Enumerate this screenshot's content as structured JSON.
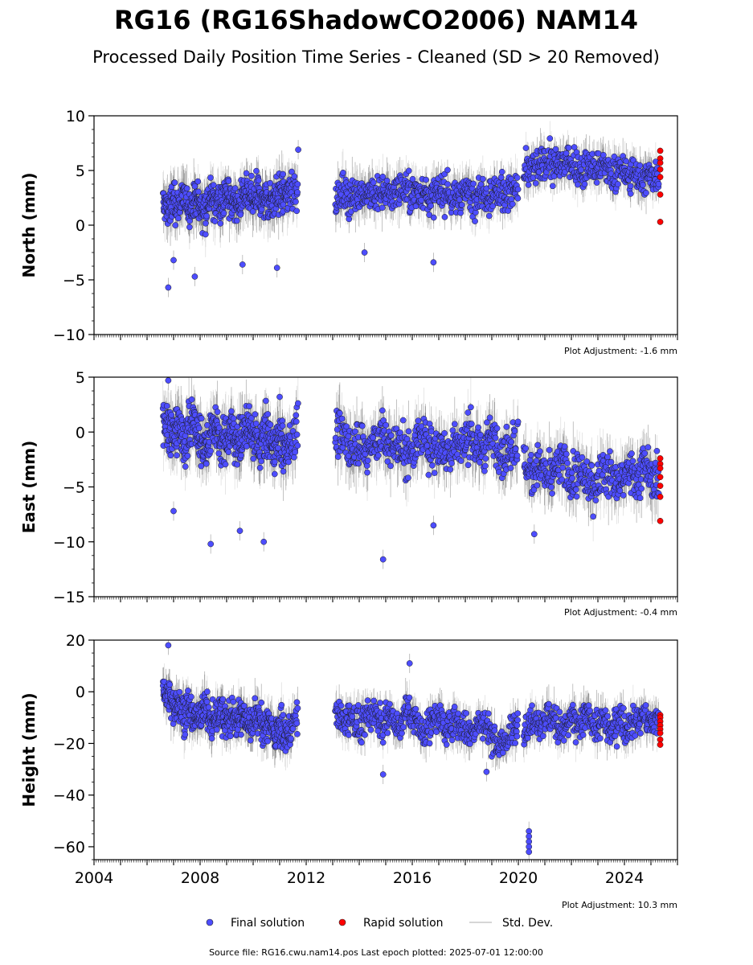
{
  "title": "RG16 (RG16ShadowCO2006) NAM14",
  "subtitle": "Processed Daily Position Time Series - Cleaned (SD > 20 Removed)",
  "source": "Source file: RG16.cwu.nam14.pos  Last epoch plotted: 2025-07-01 12:00:00",
  "legend": {
    "final": "Final solution",
    "rapid": "Rapid solution",
    "std": "Std. Dev."
  },
  "colors": {
    "final": "#4d4dff",
    "rapid": "#ff0000",
    "std": "#b0b0b0",
    "std_dark": "#404040"
  },
  "chart_data": [
    {
      "type": "scatter",
      "ylabel": "North (mm)",
      "ylim": [
        -10,
        10
      ],
      "yticks": [
        -10,
        -5,
        0,
        5,
        10
      ],
      "xlim": [
        2004,
        2026
      ],
      "adjustment": "Plot Adjustment: -1.6 mm",
      "segments": [
        {
          "x": [
            2006.6,
            2006.8,
            2007.0,
            2007.2,
            2007.4,
            2007.6,
            2007.8,
            2008.0,
            2008.2,
            2008.4,
            2008.6,
            2008.8,
            2009.0,
            2009.2,
            2009.4,
            2009.6,
            2009.8,
            2010.0,
            2010.2,
            2010.4,
            2010.6,
            2010.8,
            2011.0,
            2011.2,
            2011.4,
            2011.7
          ],
          "y": [
            2.0,
            1.5,
            2.2,
            1.8,
            2.5,
            1.6,
            2.4,
            2.0,
            1.7,
            2.6,
            2.1,
            1.9,
            2.8,
            2.2,
            1.8,
            2.4,
            2.7,
            2.1,
            2.9,
            2.3,
            2.0,
            2.6,
            3.0,
            2.4,
            3.1,
            3.3
          ],
          "spread": 1.6
        },
        {
          "x": [
            2013.1,
            2013.4,
            2013.7,
            2014.0,
            2014.3,
            2014.6,
            2014.9,
            2015.2,
            2015.5,
            2015.8,
            2016.1,
            2016.4,
            2016.7,
            2017.0,
            2017.3,
            2017.6,
            2017.9,
            2018.2,
            2018.5,
            2018.8,
            2019.1,
            2019.4,
            2019.7,
            2020.0
          ],
          "y": [
            2.6,
            3.0,
            2.4,
            3.2,
            2.8,
            2.5,
            3.1,
            2.7,
            3.3,
            2.9,
            2.6,
            3.2,
            2.5,
            3.0,
            2.8,
            2.4,
            3.1,
            2.7,
            3.0,
            2.6,
            3.2,
            2.9,
            2.7,
            3.4
          ],
          "spread": 1.5
        },
        {
          "x": [
            2020.2,
            2020.5,
            2020.8,
            2021.1,
            2021.4,
            2021.7,
            2022.0,
            2022.3,
            2022.6,
            2022.9,
            2023.2,
            2023.5,
            2023.8,
            2024.1,
            2024.4,
            2024.7,
            2025.0,
            2025.3
          ],
          "y": [
            4.6,
            5.0,
            5.4,
            5.8,
            5.2,
            6.0,
            5.6,
            4.8,
            5.3,
            4.9,
            5.4,
            4.6,
            5.0,
            4.4,
            4.8,
            4.2,
            4.6,
            4.5
          ],
          "spread": 1.4
        }
      ],
      "outliers": [
        [
          2006.8,
          -5.7
        ],
        [
          2007.8,
          -4.7
        ],
        [
          2007.0,
          -3.2
        ],
        [
          2009.6,
          -3.6
        ],
        [
          2010.9,
          -3.9
        ],
        [
          2016.8,
          -3.4
        ],
        [
          2014.2,
          -2.5
        ],
        [
          2011.7,
          6.9
        ]
      ],
      "rapid": {
        "x": 2025.35,
        "y": [
          6.8,
          6.1,
          5.7,
          5.1,
          4.4,
          2.8,
          0.3
        ]
      }
    },
    {
      "type": "scatter",
      "ylabel": "East (mm)",
      "ylim": [
        -15,
        5
      ],
      "yticks": [
        -15,
        -10,
        -5,
        0,
        5
      ],
      "xlim": [
        2004,
        2026
      ],
      "adjustment": "Plot Adjustment: -0.4 mm",
      "segments": [
        {
          "x": [
            2006.6,
            2006.8,
            2007.0,
            2007.2,
            2007.4,
            2007.6,
            2007.8,
            2008.0,
            2008.2,
            2008.4,
            2008.6,
            2008.8,
            2009.0,
            2009.2,
            2009.4,
            2009.6,
            2009.8,
            2010.0,
            2010.2,
            2010.4,
            2010.6,
            2010.8,
            2011.0,
            2011.2,
            2011.4,
            2011.7
          ],
          "y": [
            1.2,
            0.4,
            -0.6,
            0.8,
            -1.0,
            0.2,
            1.0,
            -0.8,
            -1.6,
            -0.2,
            0.6,
            -1.2,
            -0.4,
            0.4,
            -1.0,
            -0.6,
            0.8,
            -0.2,
            -1.4,
            0.2,
            -0.8,
            -1.6,
            -0.4,
            -2.0,
            -1.2,
            0.2
          ],
          "spread": 1.9
        },
        {
          "x": [
            2013.1,
            2013.4,
            2013.7,
            2014.0,
            2014.3,
            2014.6,
            2014.9,
            2015.2,
            2015.5,
            2015.8,
            2016.1,
            2016.4,
            2016.7,
            2017.0,
            2017.3,
            2017.6,
            2017.9,
            2018.2,
            2018.5,
            2018.8,
            2019.1,
            2019.4,
            2019.7,
            2020.0
          ],
          "y": [
            0.2,
            -0.6,
            -1.4,
            -0.4,
            -2.0,
            -1.0,
            -0.2,
            -1.6,
            -0.8,
            -2.2,
            -1.2,
            -0.4,
            -1.8,
            -1.0,
            -2.4,
            -0.6,
            -1.4,
            -0.2,
            -1.8,
            -1.0,
            -0.4,
            -2.0,
            -1.2,
            -0.8
          ],
          "spread": 1.9
        },
        {
          "x": [
            2020.2,
            2020.5,
            2020.8,
            2021.1,
            2021.4,
            2021.7,
            2022.0,
            2022.3,
            2022.6,
            2022.9,
            2023.2,
            2023.5,
            2023.8,
            2024.1,
            2024.4,
            2024.7,
            2025.0,
            2025.3
          ],
          "y": [
            -2.6,
            -4.0,
            -3.0,
            -4.6,
            -3.4,
            -2.8,
            -4.8,
            -3.6,
            -4.4,
            -5.2,
            -3.2,
            -4.2,
            -5.0,
            -3.6,
            -4.4,
            -3.0,
            -4.0,
            -4.6
          ],
          "spread": 1.8
        }
      ],
      "outliers": [
        [
          2008.4,
          -10.2
        ],
        [
          2010.4,
          -10.0
        ],
        [
          2014.9,
          -11.6
        ],
        [
          2007.0,
          -7.2
        ],
        [
          2009.5,
          -9.0
        ],
        [
          2016.8,
          -8.5
        ],
        [
          2020.6,
          -9.3
        ],
        [
          2011.0,
          3.2
        ],
        [
          2006.8,
          4.7
        ]
      ],
      "rapid": {
        "x": 2025.35,
        "y": [
          -2.4,
          -2.9,
          -3.3,
          -4.1,
          -4.9,
          -5.9,
          -8.1
        ]
      }
    },
    {
      "type": "scatter",
      "ylabel": "Height (mm)",
      "ylim": [
        -65,
        20
      ],
      "yticks": [
        -60,
        -40,
        -20,
        0,
        20
      ],
      "xlim": [
        2004,
        2026
      ],
      "xticks": [
        2004,
        2008,
        2012,
        2016,
        2020,
        2024
      ],
      "adjustment": "Plot Adjustment: 10.3 mm",
      "segments": [
        {
          "x": [
            2006.6,
            2006.8,
            2007.0,
            2007.2,
            2007.4,
            2007.6,
            2007.8,
            2008.0,
            2008.2,
            2008.4,
            2008.6,
            2008.8,
            2009.0,
            2009.2,
            2009.4,
            2009.6,
            2009.8,
            2010.0,
            2010.2,
            2010.4,
            2010.6,
            2010.8,
            2011.0,
            2011.2,
            2011.4,
            2011.7
          ],
          "y": [
            2.0,
            -2.0,
            -6.0,
            -4.0,
            -9.0,
            -6.0,
            -11.0,
            -8.0,
            -6.0,
            -12.0,
            -10.0,
            -7.0,
            -13.0,
            -9.0,
            -12.0,
            -8.0,
            -14.0,
            -11.0,
            -9.0,
            -15.0,
            -12.0,
            -17.0,
            -13.0,
            -18.0,
            -15.0,
            -10.0
          ],
          "spread": 6.0
        },
        {
          "x": [
            2013.1,
            2013.4,
            2013.7,
            2014.0,
            2014.3,
            2014.6,
            2014.9,
            2015.2,
            2015.5,
            2015.8,
            2016.1,
            2016.4,
            2016.7,
            2017.0,
            2017.3,
            2017.6,
            2017.9,
            2018.2,
            2018.5,
            2018.8,
            2019.1,
            2019.4,
            2019.7,
            2020.0
          ],
          "y": [
            -8.0,
            -12.0,
            -9.0,
            -14.0,
            -10.0,
            -7.0,
            -13.0,
            -9.0,
            -15.0,
            -6.0,
            -11.0,
            -16.0,
            -12.0,
            -9.0,
            -15.0,
            -11.0,
            -13.0,
            -17.0,
            -12.0,
            -14.0,
            -18.0,
            -22.0,
            -16.0,
            -13.0
          ],
          "spread": 5.5
        },
        {
          "x": [
            2020.2,
            2020.5,
            2020.8,
            2021.1,
            2021.4,
            2021.7,
            2022.0,
            2022.3,
            2022.6,
            2022.9,
            2023.2,
            2023.5,
            2023.8,
            2024.1,
            2024.4,
            2024.7,
            2025.0,
            2025.3
          ],
          "y": [
            -14.0,
            -10.0,
            -13.0,
            -9.0,
            -12.0,
            -15.0,
            -10.0,
            -13.0,
            -9.0,
            -14.0,
            -11.0,
            -16.0,
            -10.0,
            -14.0,
            -12.0,
            -9.0,
            -13.0,
            -12.0
          ],
          "spread": 5.5
        }
      ],
      "outliers": [
        [
          2020.4,
          -54.0
        ],
        [
          2020.4,
          -56.0
        ],
        [
          2020.4,
          -58.0
        ],
        [
          2020.4,
          -60.0
        ],
        [
          2020.4,
          -62.0
        ],
        [
          2014.9,
          -32.0
        ],
        [
          2018.8,
          -31.0
        ],
        [
          2006.8,
          18.0
        ],
        [
          2015.9,
          11.0
        ]
      ],
      "rapid": {
        "x": 2025.35,
        "y": [
          -9.0,
          -10.0,
          -11.5,
          -13.0,
          -14.5,
          -16.0,
          -18.5,
          -20.5
        ]
      }
    }
  ]
}
